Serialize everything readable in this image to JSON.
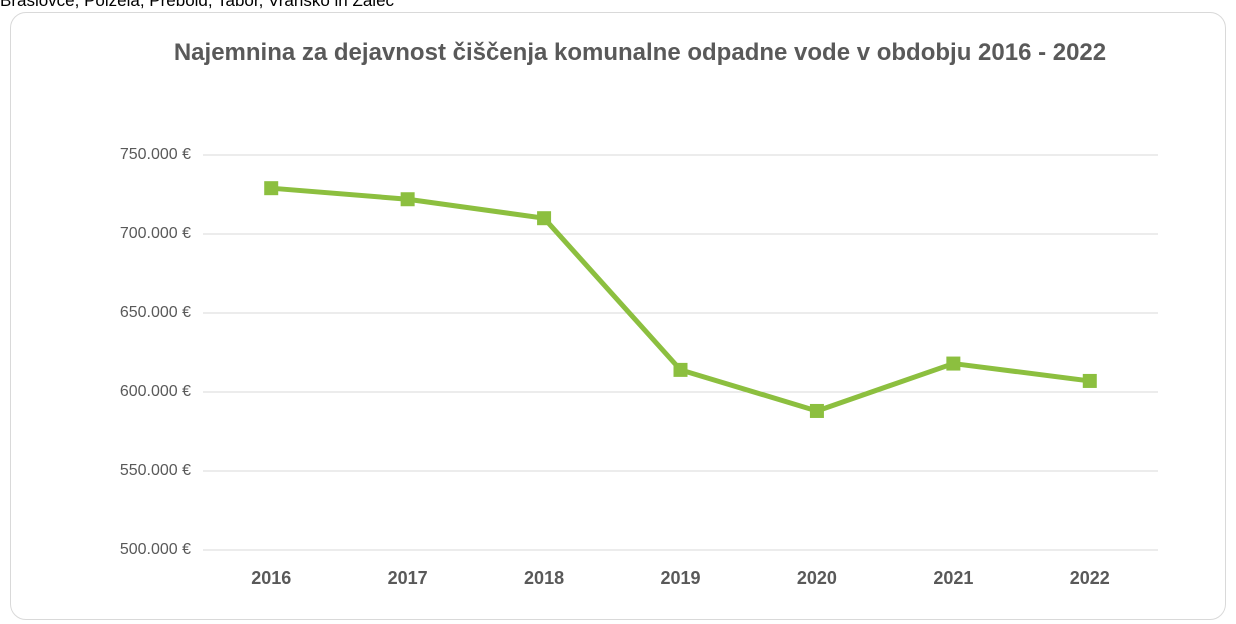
{
  "header": {
    "text": "Braslovče, Polzela, Prebold, Tabor, Vransko in Žalec"
  },
  "chart_data": {
    "type": "line",
    "title": "Najemnina za dejavnost čiščenja komunalne odpadne vode v obdobju 2016 - 2022",
    "categories": [
      "2016",
      "2017",
      "2018",
      "2019",
      "2020",
      "2021",
      "2022"
    ],
    "series": [
      {
        "name": "Najemnina",
        "color": "#8cbf3f",
        "values": [
          729000,
          722000,
          710000,
          614000,
          588000,
          618000,
          607000
        ]
      }
    ],
    "ylim": [
      500000,
      750000
    ],
    "yticks": [
      {
        "value": 500000,
        "label": "500.000 €"
      },
      {
        "value": 550000,
        "label": "550.000 €"
      },
      {
        "value": 600000,
        "label": "600.000 €"
      },
      {
        "value": 650000,
        "label": "650.000 €"
      },
      {
        "value": 700000,
        "label": "700.000 €"
      },
      {
        "value": 750000,
        "label": "750.000 €"
      }
    ],
    "grid": true
  }
}
